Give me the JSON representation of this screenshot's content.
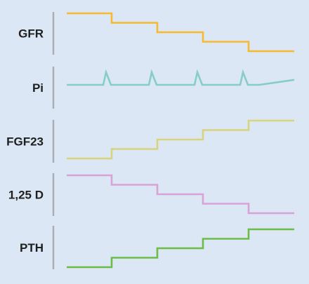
{
  "chart_data": {
    "type": "line",
    "x": [
      0,
      1,
      2,
      3,
      4,
      5
    ],
    "panels": [
      {
        "label": "GFR",
        "color": "#f7b92f",
        "shape": "step",
        "values": [
          5,
          4,
          3,
          2,
          1,
          1
        ]
      },
      {
        "label": "Pi",
        "color": "#86cdc7",
        "shape": "spikes",
        "baseline": 1,
        "spikes_at": [
          1,
          2,
          3,
          4
        ],
        "spike_height": 1,
        "end_value": 1.4
      },
      {
        "label": "FGF23",
        "color": "#d8d47d",
        "shape": "step",
        "values": [
          1,
          2,
          3,
          4,
          5,
          5
        ]
      },
      {
        "label": "1,25 D",
        "color": "#d9a2d6",
        "shape": "step",
        "values": [
          5,
          4,
          3,
          2,
          1,
          1
        ]
      },
      {
        "label": "PTH",
        "color": "#6cbd46",
        "shape": "step",
        "values": [
          1,
          2,
          3,
          4,
          5,
          5
        ]
      }
    ]
  }
}
